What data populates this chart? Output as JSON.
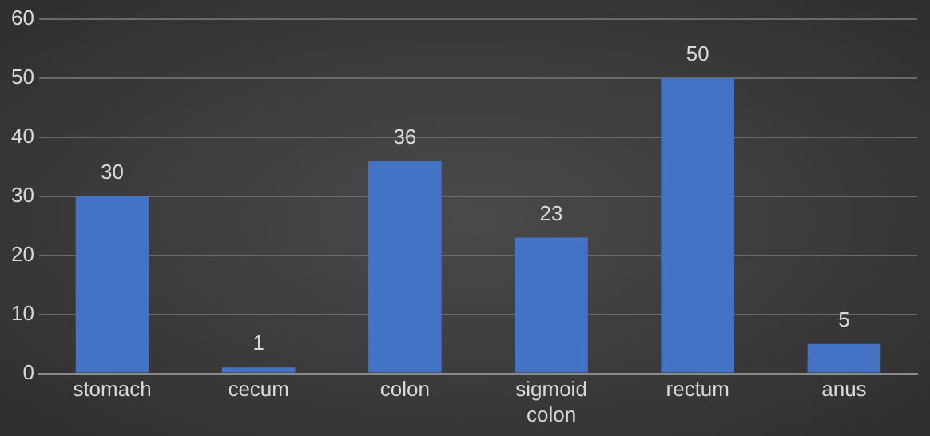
{
  "chart_data": {
    "type": "bar",
    "categories": [
      "stomach",
      "cecum",
      "colon",
      "sigmoid colon",
      "rectum",
      "anus"
    ],
    "values": [
      30,
      1,
      36,
      23,
      50,
      5
    ],
    "color": "#4472c4",
    "ylim": [
      0,
      60
    ],
    "yticks": [
      0,
      10,
      20,
      30,
      40,
      50,
      60
    ],
    "grid": "y",
    "data_labels": true,
    "legend": false
  }
}
